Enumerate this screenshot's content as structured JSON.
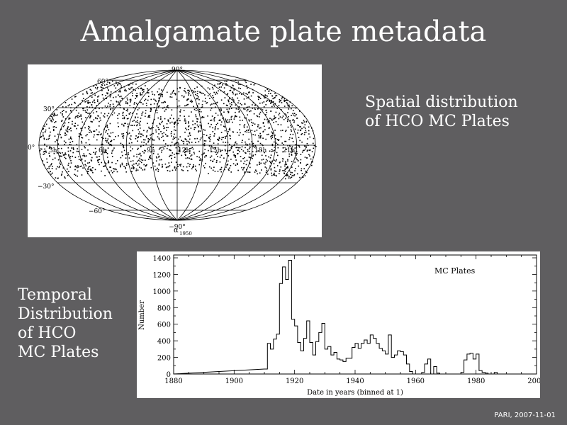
{
  "slide": {
    "title": "Amalgamate plate metadata",
    "spatial_caption": "Spatial distribution\nof HCO MC Plates",
    "temporal_caption": "Temporal\nDistribution\nof HCO\nMC Plates",
    "footer": "PARI, 2007-11-01"
  },
  "sky_map": {
    "lat_labels": [
      "90°",
      "60°",
      "30°",
      "0°",
      "−30°",
      "−60°",
      "−90°"
    ],
    "ra_labels": [
      "3h",
      "6h",
      "9h",
      "12h",
      "15h",
      "18h",
      "21h"
    ],
    "axis_label_main": "α",
    "axis_label_sub": "1950"
  },
  "chart_data": {
    "type": "bar",
    "title": "MC Plates",
    "xlabel": "Date in years (binned at 1)",
    "ylabel": "Number",
    "xlim": [
      1880,
      2000
    ],
    "ylim": [
      0,
      1400
    ],
    "x_ticks": [
      1880,
      1900,
      1920,
      1940,
      1960,
      1980,
      2000
    ],
    "y_ticks": [
      0,
      200,
      400,
      600,
      800,
      1000,
      1200,
      1400
    ],
    "x": [
      1910,
      1911,
      1912,
      1913,
      1914,
      1915,
      1916,
      1917,
      1918,
      1919,
      1920,
      1921,
      1922,
      1923,
      1924,
      1925,
      1926,
      1927,
      1928,
      1929,
      1930,
      1931,
      1932,
      1933,
      1934,
      1935,
      1936,
      1937,
      1938,
      1939,
      1940,
      1941,
      1942,
      1943,
      1944,
      1945,
      1946,
      1947,
      1948,
      1949,
      1950,
      1951,
      1952,
      1953,
      1954,
      1955,
      1956,
      1957,
      1958,
      1959,
      1960,
      1961,
      1962,
      1963,
      1964,
      1965,
      1966,
      1967,
      1968,
      1969,
      1970,
      1971,
      1972,
      1973,
      1974,
      1975,
      1976,
      1977,
      1978,
      1979,
      1980,
      1981,
      1982,
      1983,
      1984,
      1985,
      1986,
      1987,
      1988,
      1989
    ],
    "values": [
      60,
      370,
      300,
      420,
      480,
      1090,
      1290,
      1140,
      1370,
      660,
      580,
      380,
      280,
      430,
      640,
      380,
      230,
      390,
      500,
      610,
      300,
      330,
      230,
      260,
      180,
      170,
      150,
      190,
      190,
      320,
      370,
      310,
      370,
      410,
      370,
      470,
      430,
      370,
      310,
      280,
      240,
      470,
      200,
      230,
      280,
      270,
      230,
      120,
      30,
      0,
      0,
      0,
      20,
      120,
      180,
      0,
      90,
      10,
      0,
      0,
      0,
      0,
      0,
      0,
      0,
      20,
      170,
      240,
      250,
      180,
      240,
      40,
      20,
      10,
      0,
      0,
      20,
      0,
      0,
      0
    ]
  }
}
